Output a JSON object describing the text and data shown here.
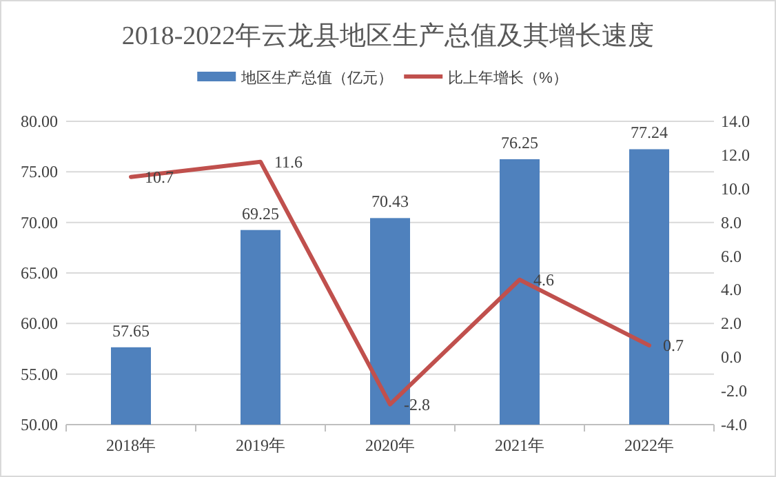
{
  "chart_data": {
    "type": "bar",
    "title": "2018-2022年云龙县地区生产总值及其增长速度",
    "categories": [
      "2018年",
      "2019年",
      "2020年",
      "2021年",
      "2022年"
    ],
    "series": [
      {
        "name": "地区生产总值（亿元）",
        "color": "#4f81bd",
        "values": [
          57.65,
          69.25,
          70.43,
          76.25,
          77.24
        ]
      },
      {
        "name": "比上年增长（%）",
        "type": "line",
        "axis": "y2",
        "color": "#c0504d",
        "values": [
          10.7,
          11.6,
          -2.8,
          4.6,
          0.7
        ]
      }
    ],
    "ylim": [
      50,
      80
    ],
    "yticks": [
      {
        "value": 50,
        "label": "50.00"
      },
      {
        "value": 55,
        "label": "55.00"
      },
      {
        "value": 60,
        "label": "60.00"
      },
      {
        "value": 65,
        "label": "65.00"
      },
      {
        "value": 70,
        "label": "70.00"
      },
      {
        "value": 75,
        "label": "75.00"
      },
      {
        "value": 80,
        "label": "80.00"
      }
    ],
    "y2lim": [
      -4,
      14
    ],
    "y2ticks": [
      {
        "value": -4,
        "label": "-4.0"
      },
      {
        "value": -2,
        "label": "-2.0"
      },
      {
        "value": 0,
        "label": "0.0"
      },
      {
        "value": 2,
        "label": "2.0"
      },
      {
        "value": 4,
        "label": "4.0"
      },
      {
        "value": 6,
        "label": "6.0"
      },
      {
        "value": 8,
        "label": "8.0"
      },
      {
        "value": 10,
        "label": "10.0"
      },
      {
        "value": 12,
        "label": "12.0"
      },
      {
        "value": 14,
        "label": "14.0"
      }
    ],
    "grid": "y",
    "legend": "top",
    "data_labels": true,
    "marker": "none",
    "line_style": "solid"
  }
}
